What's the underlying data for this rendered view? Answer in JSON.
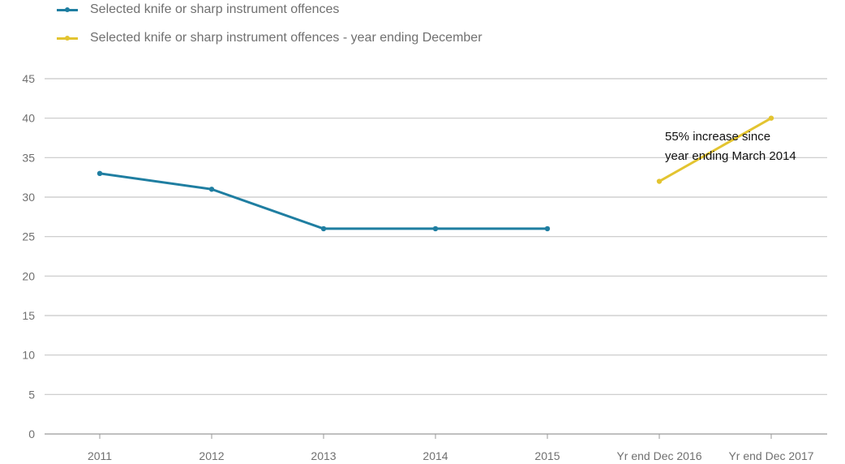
{
  "chart_data": {
    "type": "line",
    "title": "",
    "xlabel": "",
    "ylabel": "",
    "ylim": [
      0,
      45
    ],
    "yticks": [
      0,
      5,
      10,
      15,
      20,
      25,
      30,
      35,
      40,
      45
    ],
    "categories": [
      "2011",
      "2012",
      "2013",
      "2014",
      "2015",
      "Yr end Dec 2016",
      "Yr end Dec 2017"
    ],
    "grid": true,
    "legend_position": "top-left",
    "series": [
      {
        "name": "Selected knife or sharp instrument offences",
        "color": "#1f7ea1",
        "points": [
          {
            "x": "2011",
            "y": 33
          },
          {
            "x": "2012",
            "y": 31
          },
          {
            "x": "2013",
            "y": 26
          },
          {
            "x": "2014",
            "y": 26
          },
          {
            "x": "2015",
            "y": 26
          }
        ]
      },
      {
        "name": "Selected knife or sharp instrument offences - year ending December",
        "color": "#e3c430",
        "points": [
          {
            "x": "Yr end Dec 2016",
            "y": 32
          },
          {
            "x": "Yr end Dec 2017",
            "y": 40
          }
        ]
      }
    ],
    "annotations": [
      {
        "lines": [
          "55% increase since",
          "year ending March 2014"
        ],
        "x": "Yr end Dec 2016",
        "y": 37
      }
    ]
  }
}
